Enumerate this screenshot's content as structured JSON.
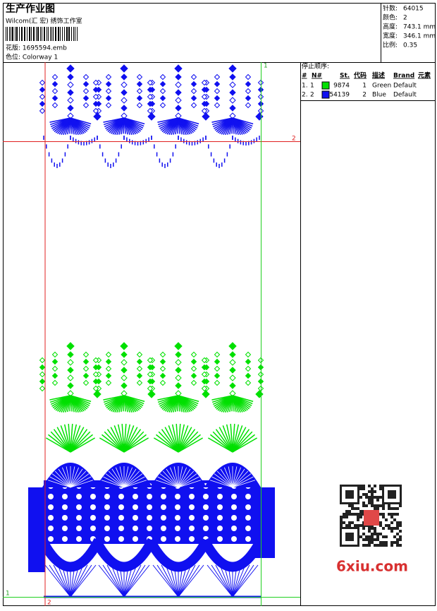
{
  "header": {
    "title": "生产作业图",
    "studio": "Wilcom(汇 宏) 绣饰工作室",
    "design": "花版: 1695594.emb",
    "colorway": "色位: Colorway 1"
  },
  "stats": [
    {
      "label": "针数:",
      "value": "64015"
    },
    {
      "label": "颜色:",
      "value": "2"
    },
    {
      "label": "高度:",
      "value": "743.1 mm"
    },
    {
      "label": "宽度:",
      "value": "346.1 mm"
    },
    {
      "label": "比例:",
      "value": "0.35"
    }
  ],
  "stop_sequence": {
    "title": "停止顺序:",
    "columns": [
      "#",
      "N#",
      "St.",
      "代码",
      "描述",
      "Brand",
      "元素"
    ],
    "rows": [
      {
        "num": "1.",
        "n": "1",
        "color": "#00e000",
        "stitches": "9874",
        "code": "1",
        "desc": "Green",
        "brand": "Default"
      },
      {
        "num": "2.",
        "n": "2",
        "color": "#1010f0",
        "stitches": "54139",
        "code": "2",
        "desc": "Blue",
        "brand": "Default"
      }
    ]
  },
  "guides": {
    "top_right": "1",
    "right": "2",
    "bottom_left": "1",
    "bottom": "2"
  },
  "watermark": "6xiu.com"
}
